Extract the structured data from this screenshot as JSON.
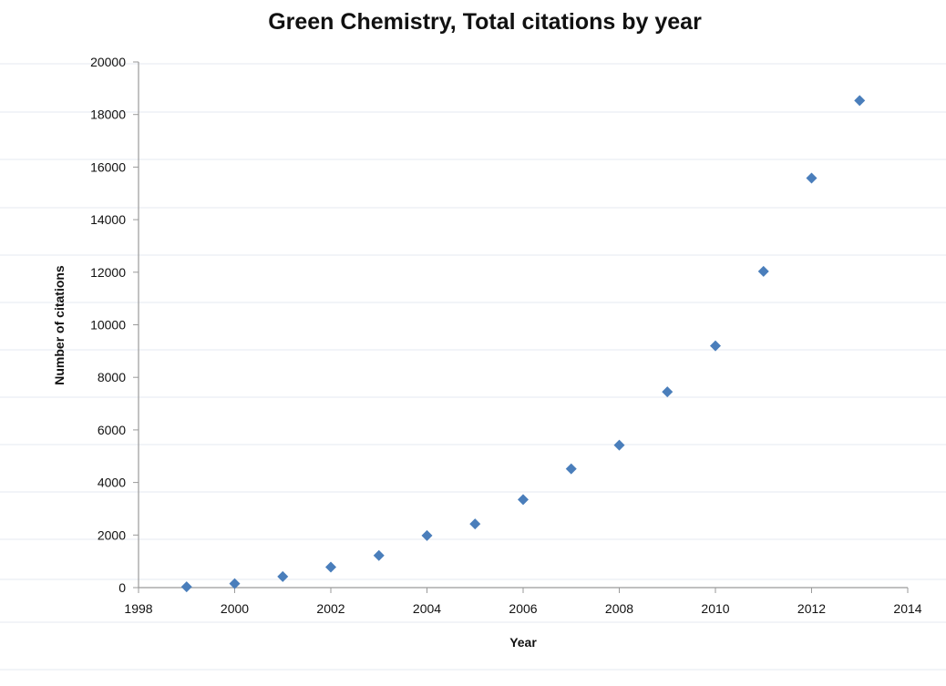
{
  "chart_data": {
    "type": "scatter",
    "title": "Green Chemistry, Total citations by year",
    "xlabel": "Year",
    "ylabel": "Number of citations",
    "xlim": [
      1998,
      2014
    ],
    "ylim": [
      0,
      20000
    ],
    "xticks": [
      1998,
      2000,
      2002,
      2004,
      2006,
      2008,
      2010,
      2012,
      2014
    ],
    "yticks": [
      0,
      2000,
      4000,
      6000,
      8000,
      10000,
      12000,
      14000,
      16000,
      18000,
      20000
    ],
    "grid": false,
    "legend": "none",
    "marker": "diamond",
    "color": "#4A7EBB",
    "series": [
      {
        "x": [
          1999,
          2000,
          2001,
          2002,
          2003,
          2004,
          2005,
          2006,
          2007,
          2008,
          2009,
          2010,
          2011,
          2012,
          2013
        ],
        "y": [
          30,
          150,
          420,
          780,
          1220,
          1980,
          2420,
          3350,
          4520,
          5420,
          7450,
          9200,
          12030,
          15580,
          18530
        ]
      }
    ]
  }
}
